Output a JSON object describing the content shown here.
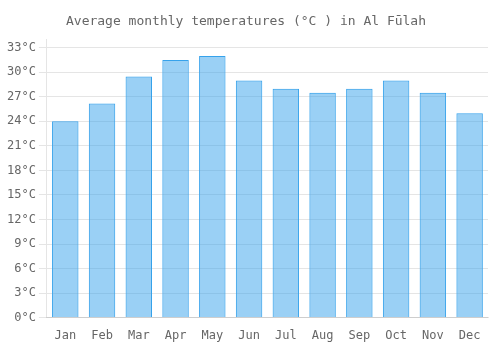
{
  "chart_data": {
    "type": "bar",
    "title": "Average monthly temperatures (°C ) in Al Fūlah",
    "categories": [
      "Jan",
      "Feb",
      "Mar",
      "Apr",
      "May",
      "Jun",
      "Jul",
      "Aug",
      "Sep",
      "Oct",
      "Nov",
      "Dec"
    ],
    "values": [
      24.0,
      26.2,
      29.5,
      31.5,
      32.0,
      29.0,
      28.0,
      27.5,
      28.0,
      29.0,
      27.5,
      25.0
    ],
    "ylim": [
      0,
      34
    ],
    "yticks": [
      {
        "value": 0,
        "label": "0°C"
      },
      {
        "value": 3,
        "label": "3°C"
      },
      {
        "value": 6,
        "label": "6°C"
      },
      {
        "value": 9,
        "label": "9°C"
      },
      {
        "value": 12,
        "label": "12°C"
      },
      {
        "value": 15,
        "label": "15°C"
      },
      {
        "value": 18,
        "label": "18°C"
      },
      {
        "value": 21,
        "label": "21°C"
      },
      {
        "value": 24,
        "label": "24°C"
      },
      {
        "value": 27,
        "label": "27°C"
      },
      {
        "value": 30,
        "label": "30°C"
      },
      {
        "value": 33,
        "label": "33°C"
      }
    ],
    "grid": true
  }
}
